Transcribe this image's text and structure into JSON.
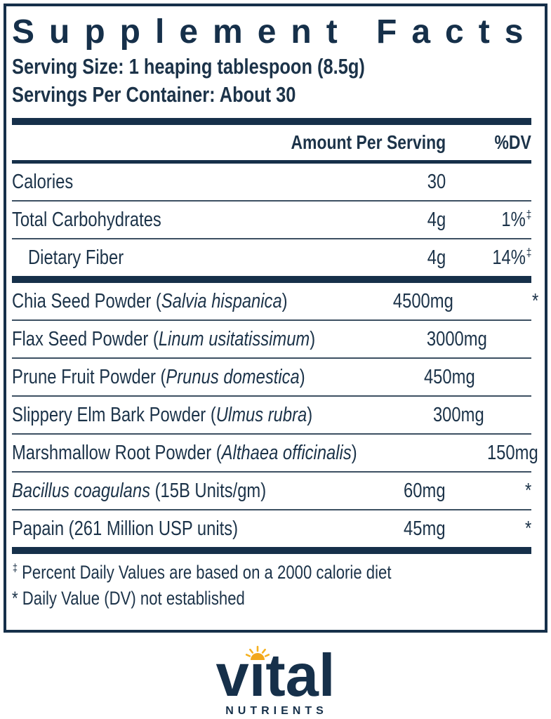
{
  "colors": {
    "navy": "#16304a",
    "text": "#1c3349",
    "thin_divider": "#3d5062",
    "sun_gold": "#f2a71b",
    "sun_ray": "#f5b120"
  },
  "label": {
    "title": "Supplement Facts",
    "serving_size": "Serving Size: 1 heaping tablespoon (8.5g)",
    "servings_per_container": "Servings Per Container: About 30",
    "header": {
      "amount": "Amount Per Serving",
      "dv": "%DV"
    },
    "rows": [
      {
        "name": [
          {
            "t": "Calories"
          }
        ],
        "amount": "30",
        "dv": "",
        "sup": "",
        "indent": false,
        "thick": false
      },
      {
        "name": [
          {
            "t": "Total Carbohydrates"
          }
        ],
        "amount": "4g",
        "dv": "1%",
        "sup": "‡",
        "indent": false,
        "thick": false
      },
      {
        "name": [
          {
            "t": "Dietary Fiber"
          }
        ],
        "amount": "4g",
        "dv": "14%",
        "sup": "‡",
        "indent": true,
        "thick": true
      },
      {
        "name": [
          {
            "t": "Chia Seed Powder ("
          },
          {
            "t": "Salvia hispanica",
            "i": true
          },
          {
            "t": ")"
          }
        ],
        "amount": "4500mg",
        "dv": "*",
        "sup": "",
        "indent": false,
        "thick": false
      },
      {
        "name": [
          {
            "t": "Flax Seed Powder ("
          },
          {
            "t": "Linum usitatissimum",
            "i": true
          },
          {
            "t": ")"
          }
        ],
        "amount": "3000mg",
        "dv": "*",
        "sup": "",
        "indent": false,
        "thick": false
      },
      {
        "name": [
          {
            "t": "Prune Fruit Powder ("
          },
          {
            "t": "Prunus domestica",
            "i": true
          },
          {
            "t": ")"
          }
        ],
        "amount": "450mg",
        "dv": "*",
        "sup": "",
        "indent": false,
        "thick": false
      },
      {
        "name": [
          {
            "t": "Slippery Elm Bark Powder ("
          },
          {
            "t": "Ulmus rubra",
            "i": true
          },
          {
            "t": ")"
          }
        ],
        "amount": "300mg",
        "dv": "*",
        "sup": "",
        "indent": false,
        "thick": false
      },
      {
        "name": [
          {
            "t": "Marshmallow Root Powder ("
          },
          {
            "t": "Althaea officinalis",
            "i": true
          },
          {
            "t": ")"
          }
        ],
        "amount": "150mg",
        "dv": "*",
        "sup": "",
        "indent": false,
        "thick": false
      },
      {
        "name": [
          {
            "t": "Bacillus coagulans",
            "i": true
          },
          {
            "t": " (15B Units/gm)"
          }
        ],
        "amount": "60mg",
        "dv": "*",
        "sup": "",
        "indent": false,
        "thick": false
      },
      {
        "name": [
          {
            "t": "Papain (261 Million USP units)"
          }
        ],
        "amount": "45mg",
        "dv": "*",
        "sup": "",
        "indent": false,
        "thick": true
      }
    ],
    "footnotes": [
      {
        "marker": "‡",
        "superscript": true,
        "text": "Percent Daily Values are based on a 2000 calorie diet"
      },
      {
        "marker": "*",
        "superscript": false,
        "text": "Daily Value (DV) not established"
      }
    ]
  },
  "logo": {
    "brand": "vital",
    "brand_pre": "v",
    "brand_i": "ı",
    "brand_post": "tal",
    "sub": "NUTRIENTS"
  }
}
